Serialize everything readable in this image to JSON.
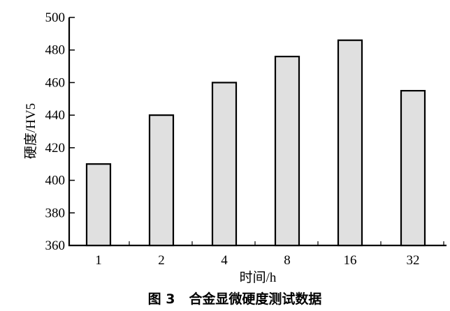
{
  "chart_data": {
    "type": "bar",
    "title": "",
    "caption": "图 3   合金显微硬度测试数据",
    "xlabel": "时间/h",
    "ylabel": "硬度/HV5",
    "categories": [
      "1",
      "2",
      "4",
      "8",
      "16",
      "32"
    ],
    "values": [
      410,
      440,
      460,
      476,
      486,
      455
    ],
    "ylim": [
      360,
      500
    ],
    "yticks": [
      360,
      380,
      400,
      420,
      440,
      460,
      480,
      500
    ],
    "grid": false,
    "bar_fill": "#e0e0e0",
    "bar_stroke": "#000000"
  }
}
